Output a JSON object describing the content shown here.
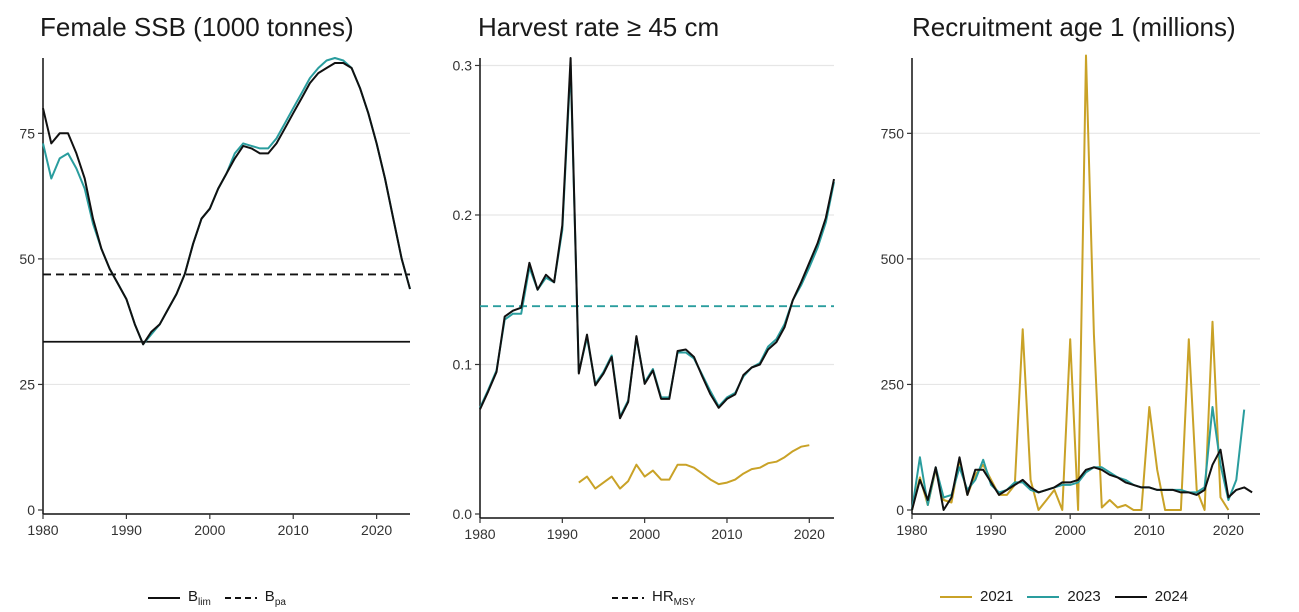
{
  "chart_data": [
    {
      "type": "line",
      "title": "Female SSB (1000 tonnes)",
      "xlim": [
        1980,
        2024
      ],
      "ylim": [
        0,
        90
      ],
      "x_ticks": [
        1980,
        1990,
        2000,
        2010,
        2020
      ],
      "y_ticks": [
        0,
        25,
        50,
        75
      ],
      "grid": "horizontal",
      "series": [
        {
          "color": "#2a9d9e",
          "x": [
            1980,
            1981,
            1982,
            1983,
            1984,
            1985,
            1986,
            1987,
            1988,
            1989,
            1990,
            1991,
            1992,
            1993,
            1994,
            1995,
            1996,
            1997,
            1998,
            1999,
            2000,
            2001,
            2002,
            2003,
            2004,
            2005,
            2006,
            2007,
            2008,
            2009,
            2010,
            2011,
            2012,
            2013,
            2014,
            2015,
            2016,
            2017,
            2018,
            2019,
            2020,
            2021,
            2022,
            2023,
            2024
          ],
          "y": [
            73,
            66,
            70,
            71,
            68,
            64,
            57,
            52,
            48,
            45,
            42,
            37,
            33,
            35,
            37,
            40,
            43,
            47,
            53,
            58,
            60,
            64,
            67,
            71,
            73,
            72.5,
            72,
            72,
            74,
            77,
            80,
            83,
            86,
            88,
            89.5,
            90,
            89.5,
            88,
            84,
            79,
            73,
            66,
            58,
            50,
            44
          ]
        },
        {
          "color": "#111111",
          "x": [
            1980,
            1981,
            1982,
            1983,
            1984,
            1985,
            1986,
            1987,
            1988,
            1989,
            1990,
            1991,
            1992,
            1993,
            1994,
            1995,
            1996,
            1997,
            1998,
            1999,
            2000,
            2001,
            2002,
            2003,
            2004,
            2005,
            2006,
            2007,
            2008,
            2009,
            2010,
            2011,
            2012,
            2013,
            2014,
            2015,
            2016,
            2017,
            2018,
            2019,
            2020,
            2021,
            2022,
            2023,
            2024
          ],
          "y": [
            80,
            73,
            75,
            75,
            71,
            66,
            58,
            52,
            48,
            45,
            42,
            37,
            33,
            35.5,
            37,
            40,
            43,
            47,
            53,
            58,
            60,
            64,
            67,
            70,
            72.5,
            72,
            71,
            71,
            73,
            76,
            79,
            82,
            85,
            87,
            88,
            89,
            89,
            88,
            84,
            79,
            73,
            66,
            58,
            50,
            44
          ]
        }
      ],
      "hlines": [
        {
          "y": 33.5,
          "style": "solid",
          "color": "#111111"
        },
        {
          "y": 46.9,
          "style": "dashed",
          "color": "#111111"
        }
      ],
      "legend": [
        {
          "text": "B",
          "sub": "lim",
          "style": "solid",
          "color": "#111111"
        },
        {
          "text": "B",
          "sub": "pa",
          "style": "dashed",
          "color": "#111111"
        }
      ]
    },
    {
      "type": "line",
      "title": "Harvest rate  ≥ 45 cm",
      "xlim": [
        1980,
        2023
      ],
      "ylim": [
        0,
        0.305
      ],
      "x_ticks": [
        1980,
        1990,
        2000,
        2010,
        2020
      ],
      "y_ticks": [
        0.0,
        0.1,
        0.2,
        0.3
      ],
      "y_tick_labels": [
        "0.0",
        "0.1",
        "0.2",
        "0.3"
      ],
      "grid": "horizontal",
      "series": [
        {
          "color": "#2a9d9e",
          "x": [
            1980,
            1981,
            1982,
            1983,
            1984,
            1985,
            1986,
            1987,
            1988,
            1989,
            1990,
            1991,
            1992,
            1993,
            1994,
            1995,
            1996,
            1997,
            1998,
            1999,
            2000,
            2001,
            2002,
            2003,
            2004,
            2005,
            2006,
            2007,
            2008,
            2009,
            2010,
            2011,
            2012,
            2013,
            2014,
            2015,
            2016,
            2017,
            2018,
            2019,
            2020,
            2021,
            2022,
            2023
          ],
          "y": [
            0.071,
            0.083,
            0.096,
            0.13,
            0.134,
            0.134,
            0.165,
            0.15,
            0.158,
            0.155,
            0.19,
            0.3,
            0.095,
            0.118,
            0.087,
            0.095,
            0.106,
            0.065,
            0.076,
            0.118,
            0.088,
            0.097,
            0.078,
            0.078,
            0.108,
            0.108,
            0.104,
            0.093,
            0.082,
            0.072,
            0.078,
            0.081,
            0.092,
            0.098,
            0.101,
            0.112,
            0.117,
            0.127,
            0.143,
            0.153,
            0.165,
            0.178,
            0.195,
            0.222
          ]
        },
        {
          "color": "#111111",
          "x": [
            1980,
            1981,
            1982,
            1983,
            1984,
            1985,
            1986,
            1987,
            1988,
            1989,
            1990,
            1991,
            1992,
            1993,
            1994,
            1995,
            1996,
            1997,
            1998,
            1999,
            2000,
            2001,
            2002,
            2003,
            2004,
            2005,
            2006,
            2007,
            2008,
            2009,
            2010,
            2011,
            2012,
            2013,
            2014,
            2015,
            2016,
            2017,
            2018,
            2019,
            2020,
            2021,
            2022,
            2023
          ],
          "y": [
            0.07,
            0.082,
            0.095,
            0.132,
            0.136,
            0.138,
            0.168,
            0.15,
            0.16,
            0.155,
            0.193,
            0.305,
            0.094,
            0.12,
            0.086,
            0.094,
            0.105,
            0.064,
            0.075,
            0.119,
            0.087,
            0.096,
            0.077,
            0.077,
            0.109,
            0.11,
            0.105,
            0.092,
            0.08,
            0.071,
            0.077,
            0.08,
            0.093,
            0.098,
            0.1,
            0.11,
            0.115,
            0.125,
            0.143,
            0.155,
            0.168,
            0.181,
            0.198,
            0.224
          ]
        },
        {
          "color": "#c9a227",
          "x": [
            1992,
            1993,
            1994,
            1995,
            1996,
            1997,
            1998,
            1999,
            2000,
            2001,
            2002,
            2003,
            2004,
            2005,
            2006,
            2007,
            2008,
            2009,
            2010,
            2011,
            2012,
            2013,
            2014,
            2015,
            2016,
            2017,
            2018,
            2019,
            2020
          ],
          "y": [
            0.021,
            0.025,
            0.017,
            0.021,
            0.025,
            0.017,
            0.022,
            0.033,
            0.025,
            0.029,
            0.023,
            0.023,
            0.033,
            0.033,
            0.031,
            0.027,
            0.023,
            0.02,
            0.021,
            0.023,
            0.027,
            0.03,
            0.031,
            0.034,
            0.035,
            0.038,
            0.042,
            0.045,
            0.046
          ]
        }
      ],
      "hlines": [
        {
          "y": 0.139,
          "style": "dashed",
          "color": "#2a9d9e"
        }
      ],
      "legend": [
        {
          "text": "HR",
          "sub": "MSY",
          "style": "dashed",
          "color": "#111111"
        }
      ]
    },
    {
      "type": "line",
      "title": "Recruitment age 1 (millions)",
      "xlim": [
        1980,
        2024
      ],
      "ylim": [
        0,
        900
      ],
      "x_ticks": [
        1980,
        1990,
        2000,
        2010,
        2020
      ],
      "y_ticks": [
        0,
        250,
        500,
        750
      ],
      "grid": "horizontal",
      "series": [
        {
          "name": "2021",
          "color": "#c9a227",
          "x": [
            1980,
            1981,
            1982,
            1983,
            1984,
            1985,
            1986,
            1987,
            1988,
            1989,
            1990,
            1991,
            1992,
            1993,
            1994,
            1995,
            1996,
            1997,
            1998,
            1999,
            2000,
            2001,
            2002,
            2003,
            2004,
            2005,
            2006,
            2007,
            2008,
            2009,
            2010,
            2011,
            2012,
            2013,
            2014,
            2015,
            2016,
            2017,
            2018,
            2019,
            2020
          ],
          "y": [
            0,
            65,
            10,
            80,
            20,
            15,
            100,
            30,
            70,
            90,
            60,
            30,
            30,
            50,
            360,
            60,
            0,
            20,
            40,
            0,
            340,
            0,
            905,
            350,
            5,
            20,
            5,
            10,
            0,
            0,
            205,
            80,
            0,
            0,
            0,
            340,
            40,
            0,
            375,
            25,
            0
          ]
        },
        {
          "name": "2023",
          "color": "#2a9d9e",
          "x": [
            1980,
            1981,
            1982,
            1983,
            1984,
            1985,
            1986,
            1987,
            1988,
            1989,
            1990,
            1991,
            1992,
            1993,
            1994,
            1995,
            1996,
            1997,
            1998,
            1999,
            2000,
            2001,
            2002,
            2003,
            2004,
            2005,
            2006,
            2007,
            2008,
            2009,
            2010,
            2011,
            2012,
            2013,
            2014,
            2015,
            2016,
            2017,
            2018,
            2019,
            2020,
            2021,
            2022
          ],
          "y": [
            0,
            105,
            10,
            85,
            25,
            30,
            85,
            40,
            60,
            100,
            50,
            35,
            40,
            55,
            55,
            40,
            35,
            40,
            45,
            50,
            50,
            55,
            75,
            85,
            85,
            75,
            65,
            60,
            50,
            45,
            45,
            40,
            40,
            40,
            40,
            35,
            35,
            45,
            205,
            90,
            20,
            60,
            200
          ]
        },
        {
          "name": "2024",
          "color": "#111111",
          "x": [
            1980,
            1981,
            1982,
            1983,
            1984,
            1985,
            1986,
            1987,
            1988,
            1989,
            1990,
            1991,
            1992,
            1993,
            1994,
            1995,
            1996,
            1997,
            1998,
            1999,
            2000,
            2001,
            2002,
            2003,
            2004,
            2005,
            2006,
            2007,
            2008,
            2009,
            2010,
            2011,
            2012,
            2013,
            2014,
            2015,
            2016,
            2017,
            2018,
            2019,
            2020,
            2021,
            2022,
            2023
          ],
          "y": [
            0,
            60,
            20,
            85,
            0,
            25,
            105,
            30,
            80,
            80,
            55,
            30,
            40,
            50,
            60,
            45,
            35,
            40,
            45,
            55,
            55,
            60,
            80,
            85,
            80,
            70,
            65,
            55,
            50,
            45,
            45,
            40,
            40,
            40,
            35,
            35,
            30,
            40,
            90,
            120,
            25,
            40,
            45,
            35
          ]
        }
      ],
      "legend": [
        {
          "text": "2021",
          "style": "solid",
          "color": "#c9a227"
        },
        {
          "text": "2023",
          "style": "solid",
          "color": "#2a9d9e"
        },
        {
          "text": "2024",
          "style": "solid",
          "color": "#111111"
        }
      ]
    }
  ]
}
